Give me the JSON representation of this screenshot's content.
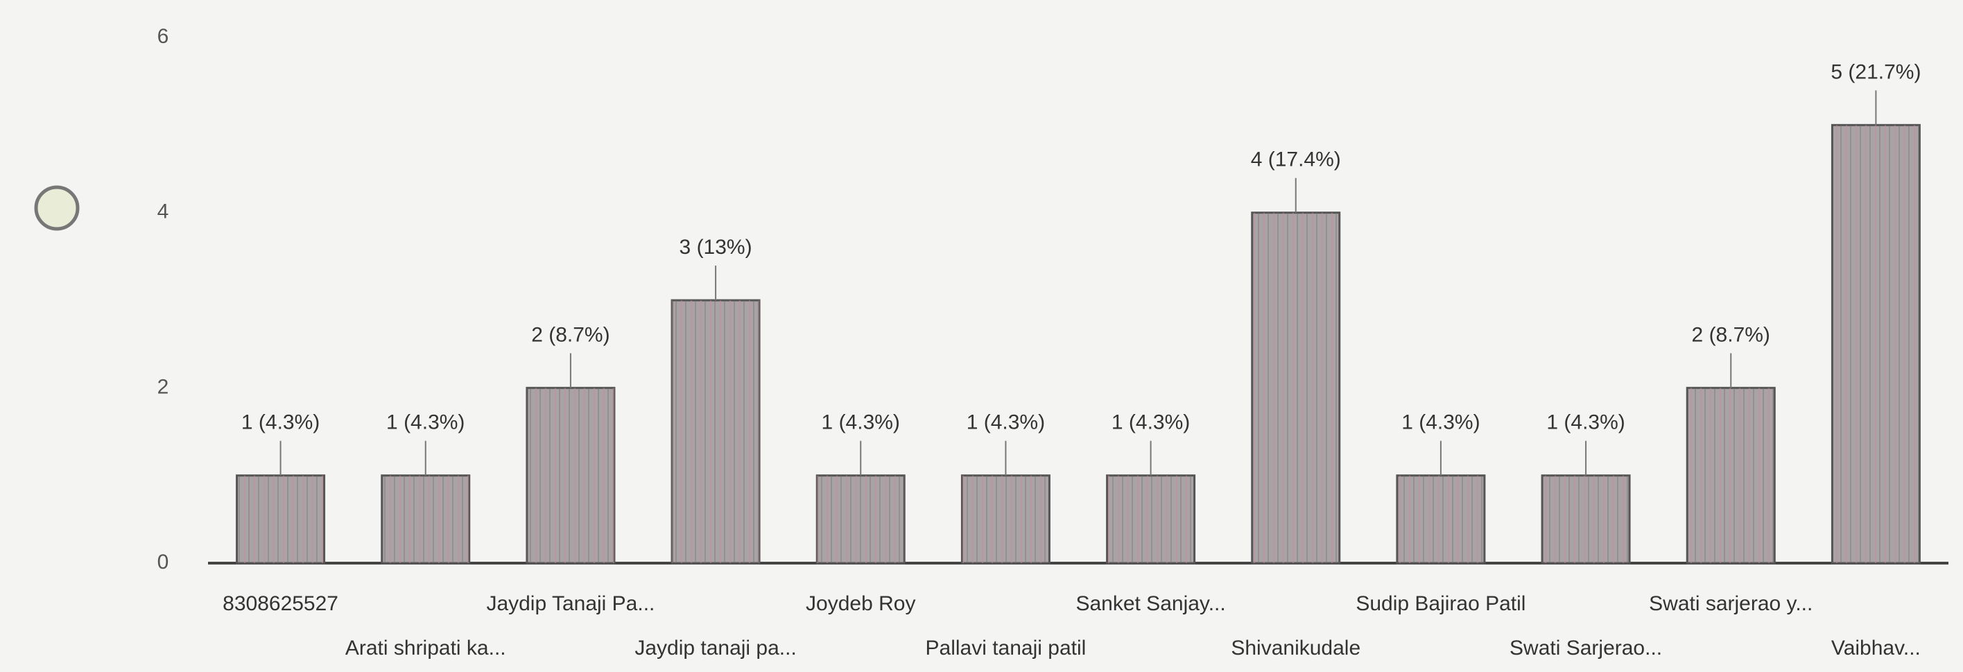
{
  "chart_data": {
    "type": "bar",
    "categories": [
      "8308625527",
      "Arati shripati ka...",
      "Jaydip Tanaji Pa...",
      "Jaydip tanaji pa...",
      "Joydeb Roy",
      "Pallavi tanaji patil",
      "Sanket Sanjay...",
      "Shivanikudale",
      "Sudip Bajirao Patil",
      "Swati Sarjerao...",
      "Swati sarjerao y...",
      "Vaibhav..."
    ],
    "values": [
      1,
      1,
      2,
      3,
      1,
      1,
      1,
      4,
      1,
      1,
      2,
      5
    ],
    "value_labels": [
      "1 (4.3%)",
      "1 (4.3%)",
      "2 (8.7%)",
      "3 (13%)",
      "1 (4.3%)",
      "1 (4.3%)",
      "1 (4.3%)",
      "4 (17.4%)",
      "1 (4.3%)",
      "1 (4.3%)",
      "2 (8.7%)",
      "5 (21.7%)"
    ],
    "color": "#a9a3a6",
    "ylim": [
      0,
      6
    ],
    "yticks": [
      0,
      2,
      4,
      6
    ],
    "grid": false
  }
}
